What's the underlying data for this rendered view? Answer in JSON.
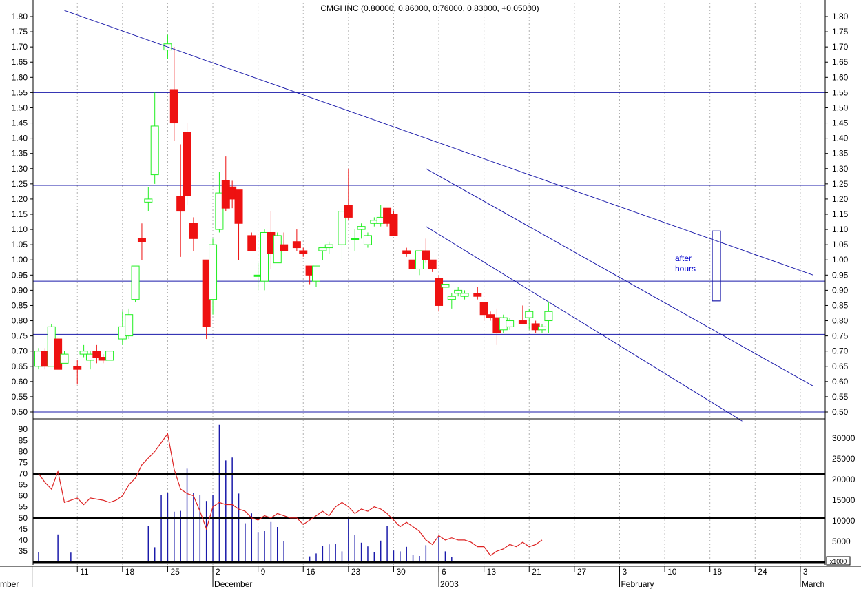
{
  "colors": {
    "up": "#22ee22",
    "down": "#ee1111",
    "trend": "#1a1aaa",
    "rsi": "#dd2222",
    "volume": "#1a1aaa",
    "grid": "#b0b0b0"
  },
  "chart_data": {
    "type": "candlestick",
    "title": "CMGI INC (0.80000, 0.86000, 0.76000, 0.83000, +0.05000)",
    "annotation": "after\nhours",
    "x_axis": {
      "ticks": [
        {
          "d": 11,
          "label": "11"
        },
        {
          "d": 18,
          "label": "18"
        },
        {
          "d": 25,
          "label": "25"
        },
        {
          "d": 32,
          "label": "2"
        },
        {
          "d": 39,
          "label": "9"
        },
        {
          "d": 46,
          "label": "16"
        },
        {
          "d": 53,
          "label": "23"
        },
        {
          "d": 60,
          "label": "30"
        },
        {
          "d": 67,
          "label": "6"
        },
        {
          "d": 74,
          "label": "13"
        },
        {
          "d": 81,
          "label": "21"
        },
        {
          "d": 88,
          "label": "27"
        },
        {
          "d": 95,
          "label": "3"
        },
        {
          "d": 102,
          "label": "10"
        },
        {
          "d": 109,
          "label": "18"
        },
        {
          "d": 116,
          "label": "24"
        },
        {
          "d": 123,
          "label": "3"
        }
      ],
      "months": [
        {
          "d": 4,
          "label": "mber"
        },
        {
          "d": 32,
          "label": "December"
        },
        {
          "d": 67,
          "label": "2003"
        },
        {
          "d": 95,
          "label": "February"
        },
        {
          "d": 123,
          "label": "March"
        }
      ],
      "range": [
        5,
        126
      ]
    },
    "price_axis": {
      "min": 0.475,
      "max": 1.82,
      "ticks": [
        "0.50",
        "0.55",
        "0.60",
        "0.65",
        "0.70",
        "0.75",
        "0.80",
        "0.85",
        "0.90",
        "0.95",
        "1.00",
        "1.05",
        "1.10",
        "1.15",
        "1.20",
        "1.25",
        "1.30",
        "1.35",
        "1.40",
        "1.45",
        "1.50",
        "1.55",
        "1.60",
        "1.65",
        "1.70",
        "1.75",
        "1.80"
      ]
    },
    "rsi_axis": {
      "min": 30,
      "max": 92,
      "ticks": [
        "35",
        "40",
        "45",
        "50",
        "55",
        "60",
        "65",
        "70",
        "75",
        "80",
        "85",
        "90"
      ],
      "bands": [
        70,
        50
      ]
    },
    "volume_axis": {
      "min": 0,
      "max": 35000,
      "ticks": [
        "5000",
        "10000",
        "15000",
        "20000",
        "25000",
        "30000"
      ],
      "multiplier": "x1000"
    },
    "horizontal_levels": [
      1.55,
      1.245,
      0.93,
      0.755,
      0.5
    ],
    "trendlines": [
      {
        "x1": 9,
        "y1": 1.82,
        "x2": 125,
        "y2": 0.95
      },
      {
        "x1": 65,
        "y1": 1.3,
        "x2": 125,
        "y2": 0.585
      },
      {
        "x1": 65,
        "y1": 1.11,
        "x2": 114,
        "y2": 0.47
      }
    ],
    "after_hours_box": {
      "d": 110,
      "top": 1.095,
      "bottom": 0.865
    },
    "candles": [
      {
        "d": 5,
        "o": 0.65,
        "h": 0.71,
        "l": 0.64,
        "c": 0.7
      },
      {
        "d": 6,
        "o": 0.7,
        "h": 0.71,
        "l": 0.64,
        "c": 0.65
      },
      {
        "d": 7,
        "o": 0.65,
        "h": 0.79,
        "l": 0.65,
        "c": 0.78
      },
      {
        "d": 8,
        "o": 0.74,
        "h": 0.74,
        "l": 0.64,
        "c": 0.64
      },
      {
        "d": 9,
        "o": 0.66,
        "h": 0.7,
        "l": 0.66,
        "c": 0.69
      },
      {
        "d": 11,
        "o": 0.65,
        "h": 0.67,
        "l": 0.59,
        "c": 0.64
      },
      {
        "d": 12,
        "o": 0.69,
        "h": 0.72,
        "l": 0.68,
        "c": 0.7
      },
      {
        "d": 13,
        "o": 0.67,
        "h": 0.7,
        "l": 0.64,
        "c": 0.69
      },
      {
        "d": 14,
        "o": 0.7,
        "h": 0.72,
        "l": 0.66,
        "c": 0.68
      },
      {
        "d": 15,
        "o": 0.68,
        "h": 0.69,
        "l": 0.66,
        "c": 0.67
      },
      {
        "d": 16,
        "o": 0.67,
        "h": 0.7,
        "l": 0.67,
        "c": 0.7
      },
      {
        "d": 18,
        "o": 0.74,
        "h": 0.83,
        "l": 0.72,
        "c": 0.78
      },
      {
        "d": 19,
        "o": 0.75,
        "h": 0.84,
        "l": 0.74,
        "c": 0.82
      },
      {
        "d": 20,
        "o": 0.87,
        "h": 0.98,
        "l": 0.86,
        "c": 0.98
      },
      {
        "d": 21,
        "o": 1.07,
        "h": 1.12,
        "l": 1.0,
        "c": 1.06
      },
      {
        "d": 22,
        "o": 1.19,
        "h": 1.24,
        "l": 1.16,
        "c": 1.2
      },
      {
        "d": 23,
        "o": 1.28,
        "h": 1.55,
        "l": 1.25,
        "c": 1.44
      },
      {
        "d": 25,
        "o": 1.69,
        "h": 1.74,
        "l": 1.66,
        "c": 1.71
      },
      {
        "d": 26,
        "o": 1.56,
        "h": 1.7,
        "l": 1.39,
        "c": 1.45
      },
      {
        "d": 27,
        "o": 1.21,
        "h": 1.38,
        "l": 1.01,
        "c": 1.16
      },
      {
        "d": 28,
        "o": 1.42,
        "h": 1.45,
        "l": 1.18,
        "c": 1.21
      },
      {
        "d": 29,
        "o": 1.12,
        "h": 1.14,
        "l": 1.03,
        "c": 1.07
      },
      {
        "d": 31,
        "o": 1.0,
        "h": 1.0,
        "l": 0.74,
        "c": 0.78
      },
      {
        "d": 32,
        "o": 0.87,
        "h": 1.07,
        "l": 0.82,
        "c": 1.05
      },
      {
        "d": 33,
        "o": 1.1,
        "h": 1.29,
        "l": 1.09,
        "c": 1.22
      },
      {
        "d": 34,
        "o": 1.26,
        "h": 1.34,
        "l": 1.16,
        "c": 1.17
      },
      {
        "d": 35,
        "o": 1.24,
        "h": 1.26,
        "l": 1.17,
        "c": 1.2
      },
      {
        "d": 36,
        "o": 1.23,
        "h": 1.23,
        "l": 1.0,
        "c": 1.12
      },
      {
        "d": 38,
        "o": 1.08,
        "h": 1.09,
        "l": 1.03,
        "c": 1.03
      },
      {
        "d": 39,
        "o": 0.95,
        "h": 0.99,
        "l": 0.9,
        "c": 0.95
      },
      {
        "d": 40,
        "o": 0.93,
        "h": 1.1,
        "l": 0.9,
        "c": 1.09
      },
      {
        "d": 41,
        "o": 1.09,
        "h": 1.16,
        "l": 0.97,
        "c": 1.02
      },
      {
        "d": 42,
        "o": 0.99,
        "h": 1.09,
        "l": 0.99,
        "c": 1.08
      },
      {
        "d": 43,
        "o": 1.05,
        "h": 1.09,
        "l": 1.03,
        "c": 1.03
      },
      {
        "d": 45,
        "o": 1.06,
        "h": 1.1,
        "l": 1.03,
        "c": 1.04
      },
      {
        "d": 46,
        "o": 1.03,
        "h": 1.04,
        "l": 1.01,
        "c": 1.02
      },
      {
        "d": 47,
        "o": 0.98,
        "h": 0.98,
        "l": 0.92,
        "c": 0.95
      },
      {
        "d": 48,
        "o": 0.93,
        "h": 0.98,
        "l": 0.91,
        "c": 0.98
      },
      {
        "d": 49,
        "o": 1.03,
        "h": 1.04,
        "l": 1.0,
        "c": 1.04
      },
      {
        "d": 50,
        "o": 1.04,
        "h": 1.06,
        "l": 1.02,
        "c": 1.05
      },
      {
        "d": 52,
        "o": 1.05,
        "h": 1.17,
        "l": 1.0,
        "c": 1.16
      },
      {
        "d": 53,
        "o": 1.18,
        "h": 1.3,
        "l": 1.13,
        "c": 1.14
      },
      {
        "d": 54,
        "o": 1.07,
        "h": 1.1,
        "l": 1.03,
        "c": 1.07
      },
      {
        "d": 55,
        "o": 1.1,
        "h": 1.12,
        "l": 1.07,
        "c": 1.11
      },
      {
        "d": 56,
        "o": 1.05,
        "h": 1.09,
        "l": 1.04,
        "c": 1.08
      },
      {
        "d": 57,
        "o": 1.12,
        "h": 1.14,
        "l": 1.11,
        "c": 1.13
      },
      {
        "d": 58,
        "o": 1.12,
        "h": 1.18,
        "l": 1.11,
        "c": 1.14
      },
      {
        "d": 59,
        "o": 1.17,
        "h": 1.17,
        "l": 1.11,
        "c": 1.12
      },
      {
        "d": 60,
        "o": 1.15,
        "h": 1.16,
        "l": 1.08,
        "c": 1.08
      },
      {
        "d": 62,
        "o": 1.03,
        "h": 1.04,
        "l": 1.01,
        "c": 1.02
      },
      {
        "d": 63,
        "o": 1.0,
        "h": 1.0,
        "l": 0.97,
        "c": 0.97
      },
      {
        "d": 64,
        "o": 0.97,
        "h": 1.03,
        "l": 0.95,
        "c": 1.03
      },
      {
        "d": 65,
        "o": 1.03,
        "h": 1.07,
        "l": 0.99,
        "c": 1.0
      },
      {
        "d": 66,
        "o": 1.0,
        "h": 1.0,
        "l": 0.96,
        "c": 0.97
      },
      {
        "d": 67,
        "o": 0.94,
        "h": 0.95,
        "l": 0.83,
        "c": 0.85
      },
      {
        "d": 68,
        "o": 0.91,
        "h": 0.92,
        "l": 0.91,
        "c": 0.92
      },
      {
        "d": 69,
        "o": 0.87,
        "h": 0.89,
        "l": 0.84,
        "c": 0.88
      },
      {
        "d": 70,
        "o": 0.89,
        "h": 0.91,
        "l": 0.88,
        "c": 0.9
      },
      {
        "d": 71,
        "o": 0.88,
        "h": 0.9,
        "l": 0.87,
        "c": 0.89
      },
      {
        "d": 73,
        "o": 0.89,
        "h": 0.91,
        "l": 0.87,
        "c": 0.88
      },
      {
        "d": 74,
        "o": 0.86,
        "h": 0.86,
        "l": 0.8,
        "c": 0.82
      },
      {
        "d": 75,
        "o": 0.82,
        "h": 0.83,
        "l": 0.8,
        "c": 0.81
      },
      {
        "d": 76,
        "o": 0.81,
        "h": 0.84,
        "l": 0.72,
        "c": 0.76
      },
      {
        "d": 77,
        "o": 0.77,
        "h": 0.82,
        "l": 0.76,
        "c": 0.81
      },
      {
        "d": 78,
        "o": 0.78,
        "h": 0.81,
        "l": 0.77,
        "c": 0.8
      },
      {
        "d": 80,
        "o": 0.8,
        "h": 0.85,
        "l": 0.79,
        "c": 0.79
      },
      {
        "d": 81,
        "o": 0.81,
        "h": 0.84,
        "l": 0.77,
        "c": 0.83
      },
      {
        "d": 82,
        "o": 0.79,
        "h": 0.8,
        "l": 0.76,
        "c": 0.77
      },
      {
        "d": 83,
        "o": 0.77,
        "h": 0.79,
        "l": 0.76,
        "c": 0.78
      },
      {
        "d": 84,
        "o": 0.8,
        "h": 0.86,
        "l": 0.76,
        "c": 0.83
      }
    ],
    "rsi": [
      {
        "d": 5,
        "v": 70
      },
      {
        "d": 6,
        "v": 66
      },
      {
        "d": 7,
        "v": 63
      },
      {
        "d": 8,
        "v": 71
      },
      {
        "d": 9,
        "v": 57
      },
      {
        "d": 11,
        "v": 59
      },
      {
        "d": 12,
        "v": 56
      },
      {
        "d": 13,
        "v": 59
      },
      {
        "d": 15,
        "v": 58
      },
      {
        "d": 16,
        "v": 57
      },
      {
        "d": 17,
        "v": 58
      },
      {
        "d": 18,
        "v": 60
      },
      {
        "d": 19,
        "v": 65
      },
      {
        "d": 20,
        "v": 68
      },
      {
        "d": 21,
        "v": 74
      },
      {
        "d": 22,
        "v": 77
      },
      {
        "d": 23,
        "v": 80
      },
      {
        "d": 24,
        "v": 84
      },
      {
        "d": 25,
        "v": 88
      },
      {
        "d": 26,
        "v": 72
      },
      {
        "d": 27,
        "v": 63
      },
      {
        "d": 28,
        "v": 61
      },
      {
        "d": 29,
        "v": 60
      },
      {
        "d": 30,
        "v": 53
      },
      {
        "d": 31,
        "v": 45
      },
      {
        "d": 32,
        "v": 55
      },
      {
        "d": 33,
        "v": 57
      },
      {
        "d": 34,
        "v": 56
      },
      {
        "d": 35,
        "v": 56
      },
      {
        "d": 36,
        "v": 54
      },
      {
        "d": 37,
        "v": 53
      },
      {
        "d": 38,
        "v": 50
      },
      {
        "d": 39,
        "v": 49
      },
      {
        "d": 40,
        "v": 51
      },
      {
        "d": 41,
        "v": 50
      },
      {
        "d": 42,
        "v": 52
      },
      {
        "d": 43,
        "v": 51
      },
      {
        "d": 44,
        "v": 50
      },
      {
        "d": 45,
        "v": 50
      },
      {
        "d": 46,
        "v": 47
      },
      {
        "d": 47,
        "v": 49
      },
      {
        "d": 48,
        "v": 51
      },
      {
        "d": 49,
        "v": 53
      },
      {
        "d": 50,
        "v": 51
      },
      {
        "d": 51,
        "v": 55
      },
      {
        "d": 52,
        "v": 57
      },
      {
        "d": 53,
        "v": 55
      },
      {
        "d": 54,
        "v": 52
      },
      {
        "d": 55,
        "v": 54
      },
      {
        "d": 56,
        "v": 53
      },
      {
        "d": 57,
        "v": 55
      },
      {
        "d": 58,
        "v": 54
      },
      {
        "d": 59,
        "v": 52
      },
      {
        "d": 60,
        "v": 49
      },
      {
        "d": 61,
        "v": 46
      },
      {
        "d": 62,
        "v": 48
      },
      {
        "d": 63,
        "v": 46
      },
      {
        "d": 64,
        "v": 44
      },
      {
        "d": 65,
        "v": 40
      },
      {
        "d": 66,
        "v": 38
      },
      {
        "d": 67,
        "v": 42
      },
      {
        "d": 68,
        "v": 40
      },
      {
        "d": 69,
        "v": 41
      },
      {
        "d": 70,
        "v": 40
      },
      {
        "d": 71,
        "v": 40
      },
      {
        "d": 72,
        "v": 39
      },
      {
        "d": 73,
        "v": 37
      },
      {
        "d": 74,
        "v": 37
      },
      {
        "d": 75,
        "v": 33
      },
      {
        "d": 76,
        "v": 35
      },
      {
        "d": 77,
        "v": 36
      },
      {
        "d": 78,
        "v": 38
      },
      {
        "d": 79,
        "v": 37
      },
      {
        "d": 80,
        "v": 39
      },
      {
        "d": 81,
        "v": 37
      },
      {
        "d": 82,
        "v": 38
      },
      {
        "d": 83,
        "v": 40
      }
    ],
    "volume": [
      {
        "d": 5,
        "v": 2500
      },
      {
        "d": 8,
        "v": 6700
      },
      {
        "d": 10,
        "v": 2300
      },
      {
        "d": 22,
        "v": 8700
      },
      {
        "d": 23,
        "v": 3600
      },
      {
        "d": 24,
        "v": 16300
      },
      {
        "d": 25,
        "v": 16800
      },
      {
        "d": 26,
        "v": 12200
      },
      {
        "d": 27,
        "v": 12400
      },
      {
        "d": 28,
        "v": 22600
      },
      {
        "d": 29,
        "v": 16700
      },
      {
        "d": 30,
        "v": 16300
      },
      {
        "d": 31,
        "v": 14800
      },
      {
        "d": 32,
        "v": 16200
      },
      {
        "d": 33,
        "v": 33200
      },
      {
        "d": 34,
        "v": 24600
      },
      {
        "d": 35,
        "v": 25300
      },
      {
        "d": 36,
        "v": 16600
      },
      {
        "d": 37,
        "v": 9400
      },
      {
        "d": 38,
        "v": 11800
      },
      {
        "d": 39,
        "v": 7300
      },
      {
        "d": 40,
        "v": 7500
      },
      {
        "d": 41,
        "v": 9700
      },
      {
        "d": 42,
        "v": 8500
      },
      {
        "d": 43,
        "v": 5000
      },
      {
        "d": 47,
        "v": 1400
      },
      {
        "d": 48,
        "v": 2100
      },
      {
        "d": 49,
        "v": 4000
      },
      {
        "d": 50,
        "v": 4300
      },
      {
        "d": 51,
        "v": 4400
      },
      {
        "d": 52,
        "v": 2600
      },
      {
        "d": 53,
        "v": 10600
      },
      {
        "d": 54,
        "v": 6500
      },
      {
        "d": 55,
        "v": 4700
      },
      {
        "d": 56,
        "v": 3800
      },
      {
        "d": 57,
        "v": 2400
      },
      {
        "d": 58,
        "v": 5200
      },
      {
        "d": 59,
        "v": 8700
      },
      {
        "d": 60,
        "v": 2800
      },
      {
        "d": 61,
        "v": 2600
      },
      {
        "d": 62,
        "v": 3700
      },
      {
        "d": 63,
        "v": 1800
      },
      {
        "d": 64,
        "v": 1500
      },
      {
        "d": 65,
        "v": 4100
      },
      {
        "d": 67,
        "v": 6400
      },
      {
        "d": 68,
        "v": 2600
      },
      {
        "d": 69,
        "v": 1200
      }
    ]
  }
}
